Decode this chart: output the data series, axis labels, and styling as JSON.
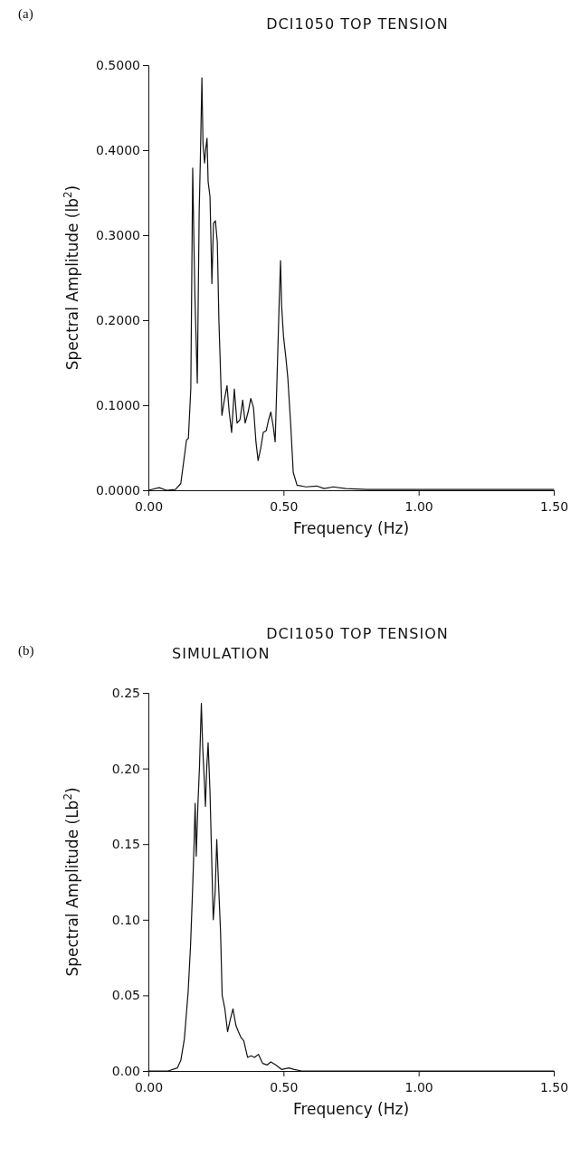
{
  "chart_data": [
    {
      "type": "line",
      "title": "DCI1050 TOP TENSION",
      "xlabel": "Frequency (Hz)",
      "ylabel": "Spectral Amplitude (lb$^{2}$)",
      "annotations": [
        "(a)"
      ],
      "xlim": [
        0,
        1.5
      ],
      "xticks": [
        {
          "value": 0,
          "label": "0.00"
        },
        {
          "value": 0.5,
          "label": "0.50"
        },
        {
          "value": 1,
          "label": "1.00"
        },
        {
          "value": 1.5,
          "label": "1.50"
        }
      ],
      "ylim": [
        0,
        0.5
      ],
      "yticks": [
        {
          "value": 0,
          "label": "0.0000"
        },
        {
          "value": 0.1,
          "label": "0.1000"
        },
        {
          "value": 0.2,
          "label": "0.2000"
        },
        {
          "value": 0.3,
          "label": "0.3000"
        },
        {
          "value": 0.4,
          "label": "0.4000"
        },
        {
          "value": 0.5,
          "label": "0.5000"
        }
      ],
      "series": [
        {
          "color": "#111111",
          "x": [
            0,
            0.04,
            0.067,
            0.1,
            0.12,
            0.141,
            0.148,
            0.157,
            0.164,
            0.168,
            0.172,
            0.181,
            0.188,
            0.192,
            0.198,
            0.202,
            0.208,
            0.212,
            0.217,
            0.221,
            0.228,
            0.235,
            0.241,
            0.248,
            0.255,
            0.261,
            0.272,
            0.281,
            0.291,
            0.299,
            0.308,
            0.318,
            0.328,
            0.339,
            0.349,
            0.358,
            0.369,
            0.379,
            0.389,
            0.398,
            0.406,
            0.416,
            0.425,
            0.436,
            0.445,
            0.453,
            0.462,
            0.469,
            0.476,
            0.484,
            0.489,
            0.493,
            0.5,
            0.509,
            0.516,
            0.527,
            0.536,
            0.55,
            0.583,
            0.623,
            0.65,
            0.684,
            0.73,
            0.81,
            0.945,
            1.5
          ],
          "values": [
            0,
            0.003,
            0,
            0.001,
            0.008,
            0.059,
            0.061,
            0.12,
            0.379,
            0.3,
            0.23,
            0.126,
            0.328,
            0.385,
            0.485,
            0.408,
            0.385,
            0.401,
            0.414,
            0.363,
            0.345,
            0.243,
            0.314,
            0.317,
            0.292,
            0.199,
            0.088,
            0.106,
            0.123,
            0.092,
            0.068,
            0.119,
            0.079,
            0.083,
            0.106,
            0.079,
            0.092,
            0.108,
            0.097,
            0.057,
            0.035,
            0.05,
            0.068,
            0.07,
            0.083,
            0.092,
            0.075,
            0.057,
            0.132,
            0.221,
            0.27,
            0.217,
            0.181,
            0.155,
            0.132,
            0.075,
            0.021,
            0.006,
            0.004,
            0.005,
            0.002,
            0.004,
            0.002,
            0.001,
            0.001,
            0.001
          ]
        }
      ]
    },
    {
      "type": "line",
      "title": "DCI1050 TOP TENSION",
      "subtitle": "SIMULATION",
      "xlabel": "Frequency (Hz)",
      "ylabel": "Spectral Amplitude (Lb$^{2}$)",
      "annotations": [
        "(b)"
      ],
      "xlim": [
        0,
        1.5
      ],
      "xticks": [
        {
          "value": 0,
          "label": "0.00"
        },
        {
          "value": 0.5,
          "label": "0.50"
        },
        {
          "value": 1,
          "label": "1.00"
        },
        {
          "value": 1.5,
          "label": "1.50"
        }
      ],
      "ylim": [
        0,
        0.25
      ],
      "yticks": [
        {
          "value": 0,
          "label": "0.00"
        },
        {
          "value": 0.05,
          "label": "0.05"
        },
        {
          "value": 0.1,
          "label": "0.10"
        },
        {
          "value": 0.15,
          "label": "0.15"
        },
        {
          "value": 0.2,
          "label": "0.20"
        },
        {
          "value": 0.25,
          "label": "0.25"
        }
      ],
      "series": [
        {
          "color": "#111111",
          "x": [
            0,
            0.073,
            0.107,
            0.12,
            0.133,
            0.147,
            0.156,
            0.164,
            0.169,
            0.173,
            0.177,
            0.183,
            0.189,
            0.196,
            0.201,
            0.207,
            0.211,
            0.216,
            0.221,
            0.228,
            0.233,
            0.24,
            0.247,
            0.253,
            0.26,
            0.267,
            0.273,
            0.283,
            0.293,
            0.303,
            0.313,
            0.324,
            0.333,
            0.343,
            0.353,
            0.367,
            0.38,
            0.393,
            0.407,
            0.423,
            0.44,
            0.453,
            0.471,
            0.493,
            0.52,
            0.54,
            0.567,
            1.5
          ],
          "values": [
            0,
            0,
            0.002,
            0.007,
            0.021,
            0.052,
            0.083,
            0.122,
            0.15,
            0.177,
            0.142,
            0.175,
            0.201,
            0.243,
            0.214,
            0.192,
            0.175,
            0.201,
            0.217,
            0.184,
            0.149,
            0.1,
            0.118,
            0.153,
            0.122,
            0.092,
            0.05,
            0.041,
            0.026,
            0.034,
            0.041,
            0.03,
            0.026,
            0.022,
            0.02,
            0.009,
            0.01,
            0.009,
            0.011,
            0.005,
            0.004,
            0.006,
            0.004,
            0.001,
            0.002,
            0.001,
            0,
            0
          ]
        }
      ]
    }
  ]
}
